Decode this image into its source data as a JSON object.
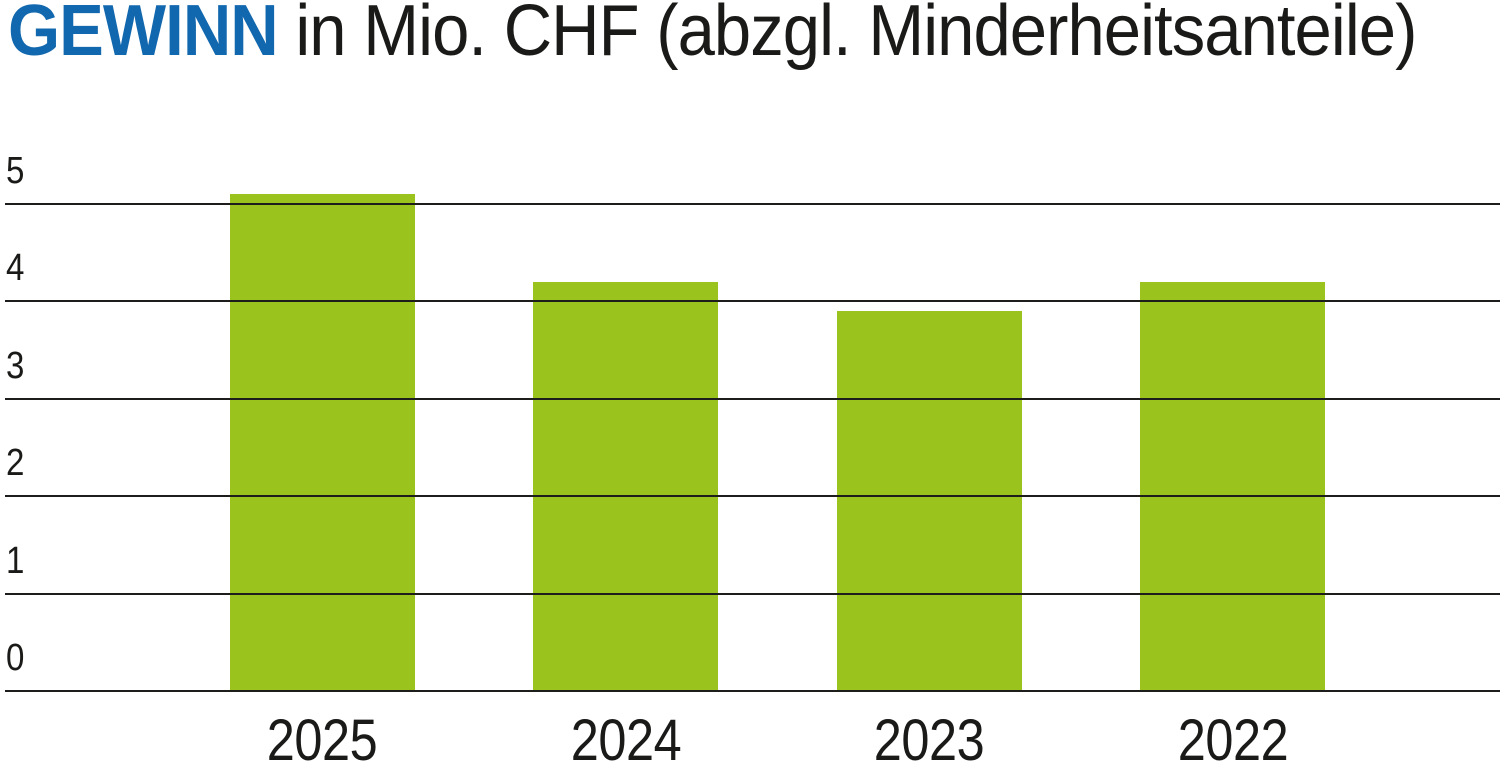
{
  "title": {
    "highlight": "GEWINN",
    "rest": " in Mio. CHF (abzgl. Minderheitsanteile)"
  },
  "colors": {
    "bar": "#9ac31d",
    "title_highlight": "#1268ae",
    "text": "#1a1a18",
    "grid": "#1d1d1b",
    "background": "#ffffff"
  },
  "chart_data": {
    "type": "bar",
    "title": "GEWINN in Mio. CHF (abzgl. Minderheitsanteile)",
    "unit_label": "Mio. CHF",
    "categories": [
      "2025",
      "2024",
      "2023",
      "2022"
    ],
    "values": [
      5.1,
      4.2,
      3.9,
      4.2
    ],
    "xlabel": "",
    "ylabel": "",
    "yticks": [
      5,
      4,
      3,
      2,
      1,
      0
    ],
    "ylim": [
      0,
      5.2
    ],
    "grid": true,
    "legend": false,
    "bar_color": "#9ac31d"
  }
}
